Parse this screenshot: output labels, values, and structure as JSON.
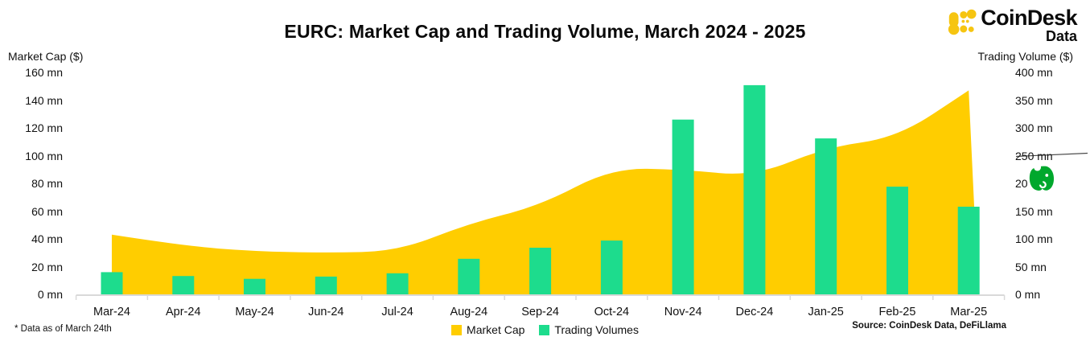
{
  "title": "EURC: Market Cap and Trading Volume, March 2024 - 2025",
  "logo": {
    "brand": "CoinDesk",
    "sub": "Data",
    "icon_color": "#F6C511"
  },
  "footnote": "* Data as of March 24th",
  "source": "Source: CoinDesk Data, DeFiLlama",
  "legend": [
    {
      "label": "Market Cap",
      "color": "#FFCD00"
    },
    {
      "label": "Trading Volumes",
      "color": "#1DDC8D"
    }
  ],
  "overlay": {
    "evernote_icon_color": "#00A82D"
  },
  "chart_data": {
    "type": "combo",
    "subtypes": [
      "area",
      "bar"
    ],
    "categories": [
      "Mar-24",
      "Apr-24",
      "May-24",
      "Jun-24",
      "Jul-24",
      "Aug-24",
      "Sep-24",
      "Oct-24",
      "Nov-24",
      "Dec-24",
      "Jan-25",
      "Feb-25",
      "Mar-25"
    ],
    "series": [
      {
        "name": "Market Cap",
        "type": "area",
        "axis": "left",
        "color": "#FFCD00",
        "values": [
          43,
          35,
          31,
          30,
          31,
          51,
          64,
          91,
          90,
          85,
          106,
          113,
          147
        ]
      },
      {
        "name": "Trading Volumes",
        "type": "bar",
        "axis": "right",
        "color": "#1DDC8D",
        "values": [
          40,
          33,
          28,
          32,
          38,
          64,
          84,
          97,
          315,
          377,
          281,
          194,
          158
        ]
      }
    ],
    "left_axis": {
      "label": "Market Cap ($)",
      "range": [
        0,
        160
      ],
      "unit": "mn",
      "tick_labels": [
        "160 mn",
        "140 mn",
        "120 mn",
        "100 mn",
        "80 mn",
        "60 mn",
        "40 mn",
        "20 mn",
        "0 mn"
      ]
    },
    "right_axis": {
      "label": "Trading Volume ($)",
      "range": [
        0,
        400
      ],
      "unit": "mn",
      "tick_labels": [
        "400 mn",
        "350 mn",
        "300 mn",
        "250 mn",
        "200 mn",
        "150 mn",
        "100 mn",
        "50 mn",
        "0 mn"
      ]
    },
    "grid": false,
    "legend_position": "bottom",
    "axis_line_color": "#d9d9d9"
  }
}
